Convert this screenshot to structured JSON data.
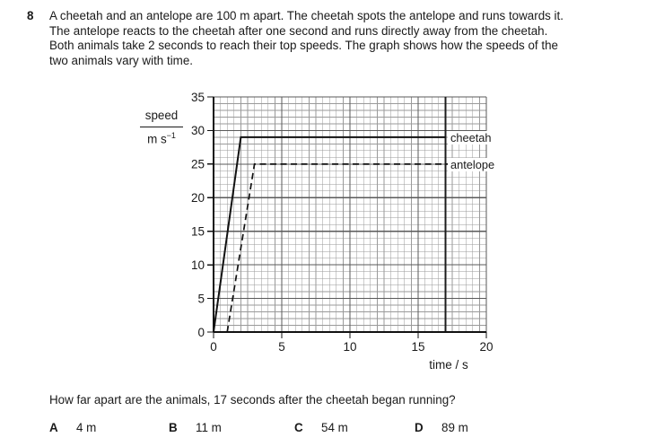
{
  "question": {
    "number": "8",
    "lines": [
      "A cheetah and an antelope are 100 m apart. The cheetah spots the antelope and runs towards it.",
      "The antelope reacts to the cheetah after one second and runs directly away from the cheetah.",
      "Both animals take 2 seconds to reach their top speeds. The graph shows how the speeds of the",
      "two animals vary with time."
    ],
    "prompt": "How far apart are the animals, 17 seconds after the cheetah began running?"
  },
  "options": [
    {
      "letter": "A",
      "value": "4 m"
    },
    {
      "letter": "B",
      "value": "11 m"
    },
    {
      "letter": "C",
      "value": "54 m"
    },
    {
      "letter": "D",
      "value": "89 m"
    }
  ],
  "chart_data": {
    "type": "line",
    "title": "",
    "xlabel": "time / s",
    "ylabel": "speed / m s⁻¹",
    "ylabel_numerator": "speed",
    "ylabel_denominator_base": "m s",
    "ylabel_denominator_sup": "−1",
    "xlim": [
      0,
      20
    ],
    "ylim": [
      0,
      35
    ],
    "x_major_ticks": [
      0,
      5,
      10,
      15,
      20
    ],
    "y_major_ticks": [
      0,
      5,
      10,
      15,
      20,
      25,
      30,
      35
    ],
    "x_minor_step": 0.5,
    "y_minor_step": 1,
    "grid": true,
    "legend_position": "inline-right-labels",
    "reference_line_x": 17,
    "series": [
      {
        "name": "cheetah",
        "line_style": "solid",
        "top_speed": 29,
        "points": [
          [
            0,
            0
          ],
          [
            2,
            29
          ],
          [
            17,
            29
          ]
        ]
      },
      {
        "name": "antelope",
        "line_style": "dashed",
        "top_speed": 25,
        "points": [
          [
            1,
            0
          ],
          [
            3,
            25
          ],
          [
            17.35,
            25
          ]
        ]
      }
    ],
    "colors": {
      "line": "#111111",
      "grid_minor": "#9a9a9a",
      "grid_major": "#5a5a5a",
      "reference_line": "#1c1c1c",
      "text": "#1a1a1a",
      "background": "#ffffff"
    }
  }
}
